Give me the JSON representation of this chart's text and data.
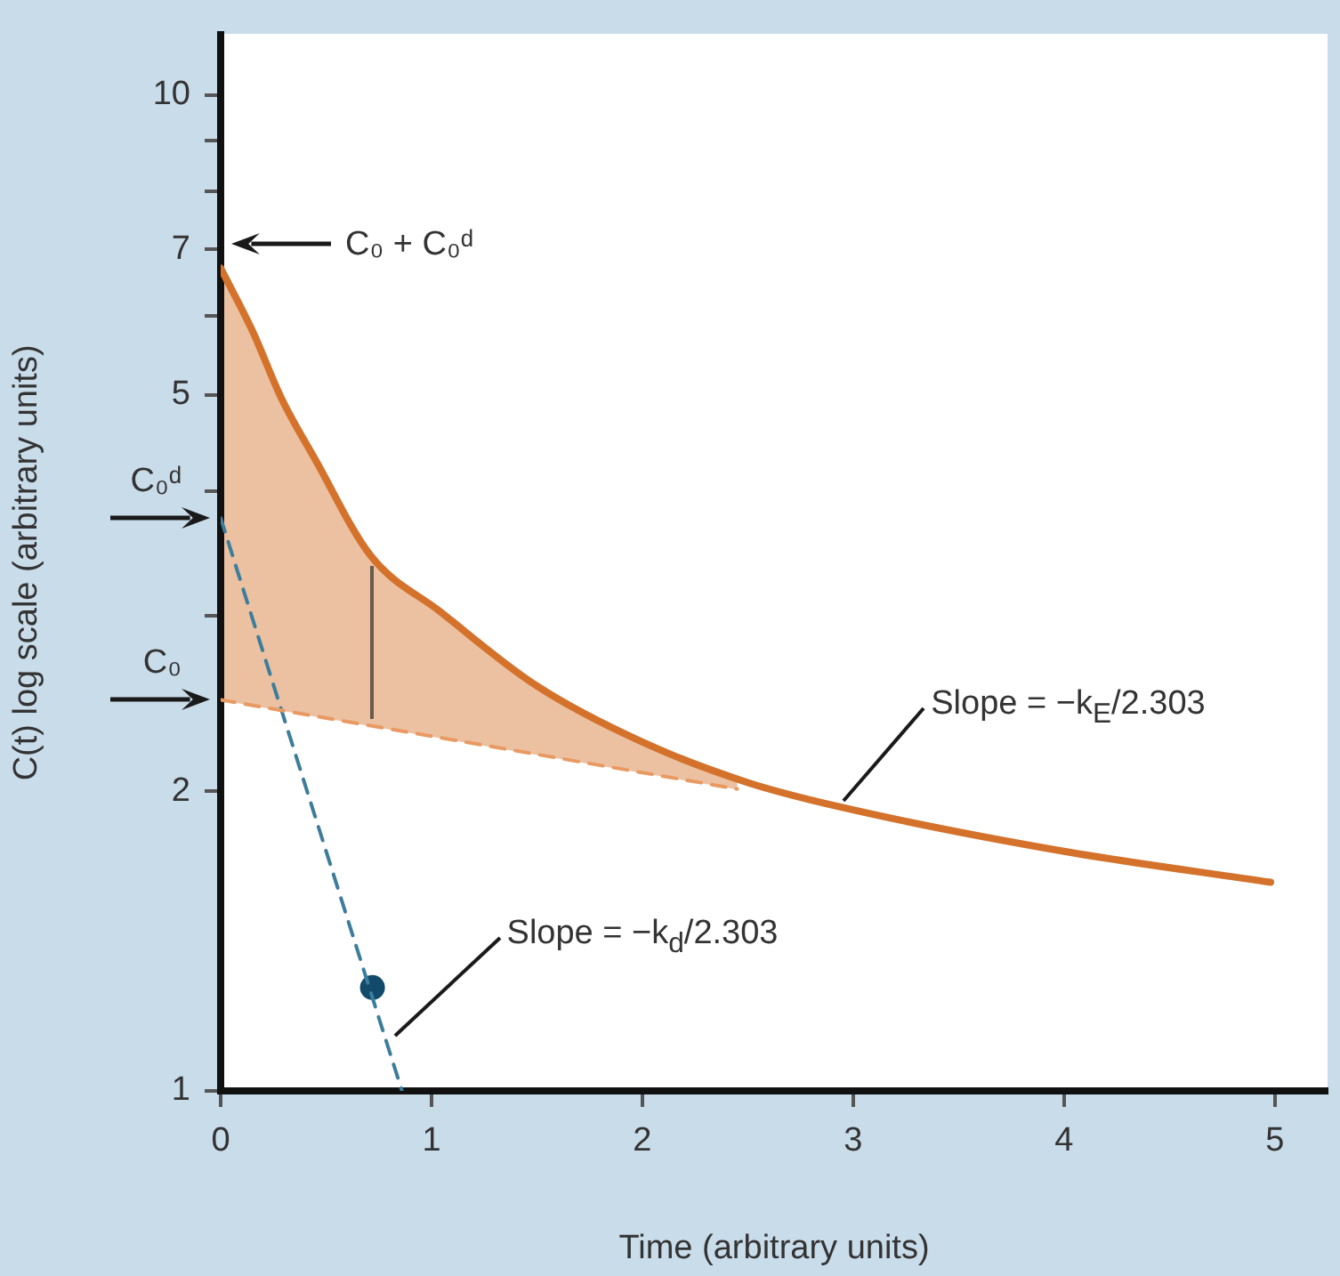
{
  "chart_data": {
    "type": "line",
    "xlabel": "Time (arbitrary units)",
    "ylabel": "C(t) log scale (arbitrary units)",
    "log": "y",
    "marker": "none",
    "xlim": [
      0,
      5.25
    ],
    "xticks": [
      0,
      1,
      2,
      3,
      4,
      5
    ],
    "ylim": [
      1,
      11.5
    ],
    "yticks": [
      1,
      2,
      {
        "value": 3,
        "label": null
      },
      {
        "value": 4,
        "label": null
      },
      5,
      {
        "value": 6,
        "label": null
      },
      7,
      {
        "value": 8,
        "label": null
      },
      {
        "value": 9,
        "label": null
      },
      10
    ],
    "series": [
      {
        "type": "line",
        "color": "#d4722c",
        "x": [
          0,
          0.15,
          0.29,
          0.45,
          0.71,
          1.04,
          1.5,
          2,
          2.5,
          2.93,
          4,
          4.98
        ],
        "values": [
          6.7,
          5.8,
          4.95,
          4.3,
          3.45,
          3.03,
          2.55,
          2.24,
          2.04,
          1.93,
          1.74,
          1.62
        ]
      },
      {
        "type": "line",
        "color": "#e89a62",
        "line_style": "dashed",
        "x": [
          0,
          2.45
        ],
        "values": [
          2.47,
          2.01
        ]
      },
      {
        "type": "line",
        "color": "#3d7d9c",
        "line_style": "dashed",
        "x": [
          0,
          0.86
        ],
        "values": [
          3.76,
          1.0
        ]
      },
      {
        "type": "scatter",
        "color": "#114a6a",
        "marker": "circle",
        "x": [
          0.72
        ],
        "values": [
          1.27
        ]
      }
    ],
    "annotations": [
      "C₀ + C₀ᵈ",
      {
        "text": "C₀ᵈ",
        "x": 0,
        "y": 3.76
      },
      {
        "text": "C₀",
        "x": 0,
        "y": 2.47
      },
      {
        "text": "Slope = −k$_{E}$/2.303",
        "x": 2.93,
        "y": 1.93
      },
      {
        "text": "Slope = −k$_{d}$/2.303",
        "x": 0.8,
        "y": 1.12
      }
    ]
  }
}
